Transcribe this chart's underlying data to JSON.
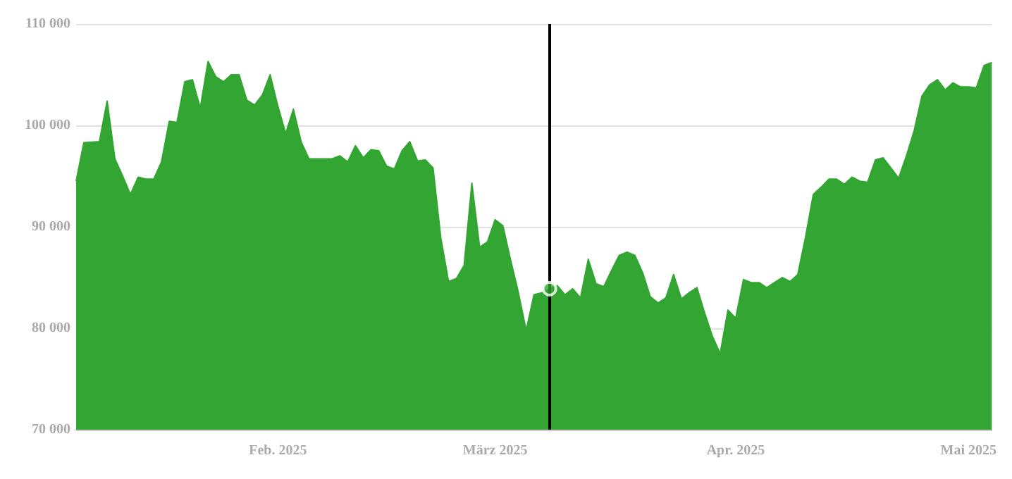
{
  "chart_data": {
    "type": "area",
    "x": [
      "2025-01-06",
      "2025-01-07",
      "2025-01-09",
      "2025-01-10",
      "2025-01-11",
      "2025-01-12",
      "2025-01-13",
      "2025-01-14",
      "2025-01-15",
      "2025-01-16",
      "2025-01-17",
      "2025-01-18",
      "2025-01-19",
      "2025-01-20",
      "2025-01-21",
      "2025-01-22",
      "2025-01-23",
      "2025-01-24",
      "2025-01-25",
      "2025-01-26",
      "2025-01-27",
      "2025-01-28",
      "2025-01-29",
      "2025-01-30",
      "2025-01-31",
      "2025-02-01",
      "2025-02-02",
      "2025-02-03",
      "2025-02-04",
      "2025-02-05",
      "2025-02-06",
      "2025-02-07",
      "2025-02-08",
      "2025-02-09",
      "2025-02-10",
      "2025-02-11",
      "2025-02-12",
      "2025-02-13",
      "2025-02-14",
      "2025-02-15",
      "2025-02-16",
      "2025-02-17",
      "2025-02-18",
      "2025-02-19",
      "2025-02-20",
      "2025-02-21",
      "2025-02-22",
      "2025-02-23",
      "2025-02-24",
      "2025-02-25",
      "2025-02-26",
      "2025-02-27",
      "2025-02-28",
      "2025-03-01",
      "2025-03-02",
      "2025-03-03",
      "2025-03-04",
      "2025-03-05",
      "2025-03-06",
      "2025-03-07",
      "2025-03-08",
      "2025-03-09",
      "2025-03-10",
      "2025-03-11",
      "2025-03-12",
      "2025-03-13",
      "2025-03-14",
      "2025-03-15",
      "2025-03-16",
      "2025-03-17",
      "2025-03-18",
      "2025-03-19",
      "2025-03-20",
      "2025-03-21",
      "2025-03-22",
      "2025-03-23",
      "2025-03-24",
      "2025-03-25",
      "2025-03-26",
      "2025-03-27",
      "2025-03-28",
      "2025-03-29",
      "2025-03-30",
      "2025-03-31",
      "2025-04-01",
      "2025-04-02",
      "2025-04-03",
      "2025-04-04",
      "2025-04-05",
      "2025-04-06",
      "2025-04-07",
      "2025-04-08",
      "2025-04-09",
      "2025-04-10",
      "2025-04-11",
      "2025-04-12",
      "2025-04-13",
      "2025-04-14",
      "2025-04-15",
      "2025-04-16",
      "2025-04-17",
      "2025-04-18",
      "2025-04-19",
      "2025-04-20",
      "2025-04-21",
      "2025-04-22",
      "2025-04-23",
      "2025-04-24",
      "2025-04-25",
      "2025-04-26",
      "2025-04-27",
      "2025-04-28",
      "2025-04-29",
      "2025-04-30",
      "2025-05-01",
      "2025-05-02",
      "2025-05-03",
      "2025-05-04"
    ],
    "series": [
      {
        "color": "#33a532",
        "values": [
          94500,
          98300,
          98400,
          102400,
          96700,
          95000,
          93200,
          94900,
          94700,
          94700,
          96400,
          100400,
          100300,
          104300,
          104500,
          101700,
          106300,
          104800,
          104300,
          105000,
          105000,
          102500,
          102000,
          103000,
          105000,
          101900,
          99200,
          101600,
          98400,
          96700,
          96700,
          96700,
          96700,
          97000,
          96400,
          98000,
          96800,
          97600,
          97500,
          96000,
          95700,
          97500,
          98400,
          96500,
          96600,
          95800,
          88900,
          84600,
          84900,
          86200,
          94300,
          88000,
          88500,
          90700,
          90100,
          86700,
          83500,
          79800,
          83300,
          83500,
          83900,
          84200,
          83300,
          83900,
          83000,
          86800,
          84400,
          84100,
          85700,
          87200,
          87500,
          87200,
          85500,
          83100,
          82500,
          83000,
          85300,
          82900,
          83500,
          84000,
          81500,
          79200,
          77500,
          81800,
          81000,
          84800,
          84500,
          84500,
          84000,
          84500,
          85000,
          84600,
          85300,
          89000,
          93200,
          93900,
          94700,
          94700,
          94200,
          94900,
          94500,
          94400,
          96600,
          96800,
          95800,
          94800,
          97000,
          99500,
          102900,
          104000,
          104500,
          103500,
          104200,
          103800,
          103800,
          103700,
          105900,
          106200
        ]
      },
      {
        "type": "scatter",
        "color": "#33a532",
        "x": [
          "2025-03-08"
        ],
        "values": [
          83900
        ]
      }
    ],
    "xlim": [
      "2025-01-06",
      "2025-05-04"
    ],
    "xticks": [
      {
        "value": "2025-02-01",
        "label": "Feb. 2025"
      },
      {
        "value": "2025-03-01",
        "label": "März 2025"
      },
      {
        "value": "2025-04-01",
        "label": "Apr. 2025"
      },
      {
        "value": "2025-05-01",
        "label": "Mai 2025"
      }
    ],
    "ylim": [
      70000,
      110000
    ],
    "yticks": [
      {
        "value": 70000,
        "label": "70 000"
      },
      {
        "value": 80000,
        "label": "80 000"
      },
      {
        "value": 90000,
        "label": "90 000"
      },
      {
        "value": 100000,
        "label": "100 000"
      },
      {
        "value": 110000,
        "label": "110 000"
      }
    ],
    "ref_lines": [
      {
        "axis": "x",
        "value": "2025-03-08",
        "color": "#000000"
      }
    ],
    "grid": "y"
  }
}
